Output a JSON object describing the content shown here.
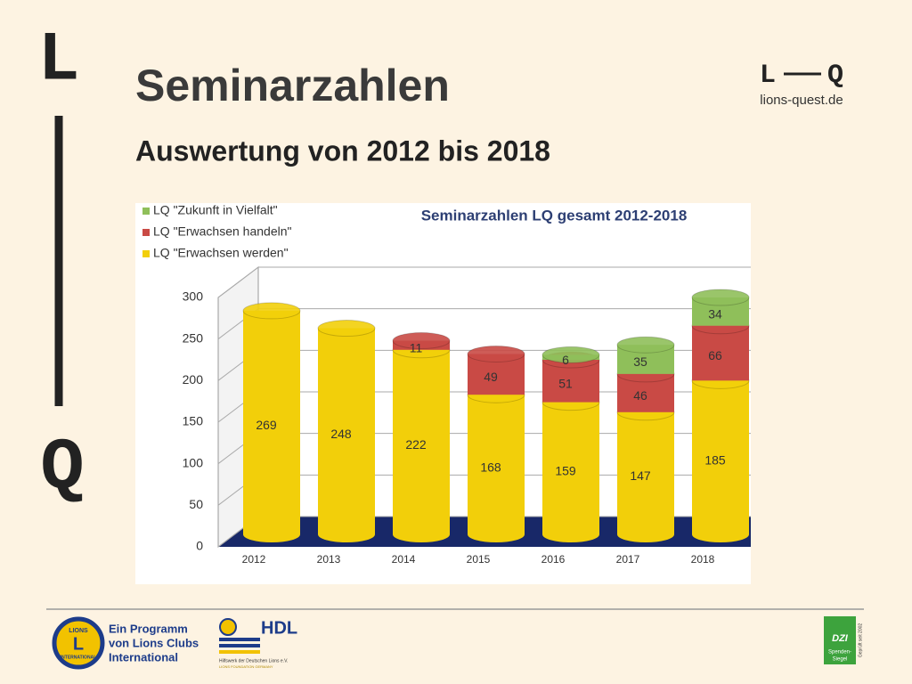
{
  "slide": {
    "title": "Seminarzahlen",
    "subtitle": "Auswertung von 2012 bis 2018",
    "side_top": "L",
    "side_bottom": "Q",
    "logo_url": "lions-quest.de",
    "footer_program": [
      "Ein Programm",
      "von Lions Clubs",
      "International"
    ],
    "lions_emblem": [
      "LIONS",
      "INTERNATIONAL"
    ],
    "hdl": "HDL",
    "hdl_lines": [
      "Hilfswerk der Deutschen Lions e.V.",
      "LIONS FOUNDATION GERMANY"
    ],
    "dzi": [
      "DZI",
      "Spenden-",
      "Siegel"
    ],
    "dzi_side": "Geprüft seit 2002"
  },
  "chart_data": {
    "type": "stacked-bar",
    "title": "Seminarzahlen LQ  gesamt 2012-2018",
    "categories": [
      "2012",
      "2013",
      "2014",
      "2015",
      "2016",
      "2017",
      "2018"
    ],
    "series": [
      {
        "name": "LQ \"Erwachsen werden\"",
        "color": "#f2cf0a",
        "values": [
          269,
          248,
          222,
          168,
          159,
          147,
          185
        ]
      },
      {
        "name": "LQ \"Erwachsen handeln\"",
        "color": "#c94a45",
        "values": [
          null,
          null,
          11,
          49,
          51,
          46,
          66
        ]
      },
      {
        "name": "LQ \"Zukunft in Vielfalt\"",
        "color": "#8fbf5a",
        "values": [
          null,
          null,
          null,
          null,
          6,
          35,
          34
        ]
      }
    ],
    "ylim": [
      0,
      300
    ],
    "yticks": [
      0,
      50,
      100,
      150,
      200,
      250,
      300
    ],
    "grid": true,
    "legend": "upper left"
  }
}
